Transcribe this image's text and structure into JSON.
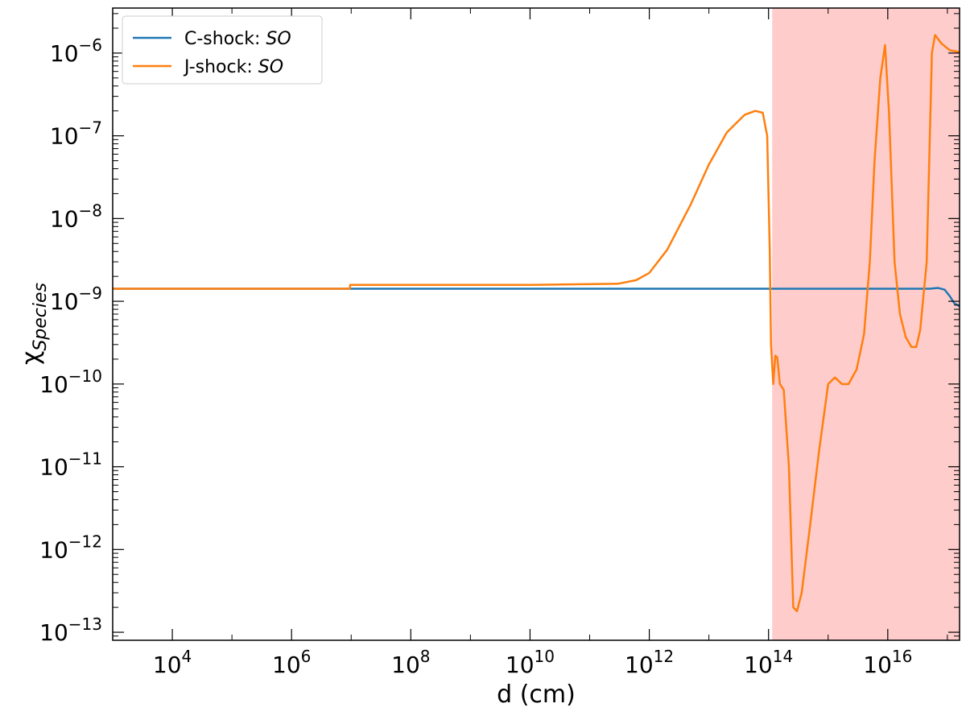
{
  "chart_data": {
    "type": "line",
    "xlabel": "d (cm)",
    "ylabel": "χ",
    "ylabel_sub": "Species",
    "xscale": "log",
    "yscale": "log",
    "xlim": [
      1000,
      1.6e+17
    ],
    "ylim": [
      8e-14,
      3.5e-06
    ],
    "xticks": [
      {
        "value": 10000,
        "base": "10",
        "exp": "4"
      },
      {
        "value": 1000000,
        "base": "10",
        "exp": "6"
      },
      {
        "value": 100000000,
        "base": "10",
        "exp": "8"
      },
      {
        "value": 10000000000,
        "base": "10",
        "exp": "10"
      },
      {
        "value": 1000000000000,
        "base": "10",
        "exp": "12"
      },
      {
        "value": 100000000000000,
        "base": "10",
        "exp": "14"
      },
      {
        "value": 10000000000000000,
        "base": "10",
        "exp": "16"
      }
    ],
    "yticks": [
      {
        "value": 1e-13,
        "base": "10",
        "exp": "−13"
      },
      {
        "value": 1e-12,
        "base": "10",
        "exp": "−12"
      },
      {
        "value": 1e-11,
        "base": "10",
        "exp": "−11"
      },
      {
        "value": 1e-10,
        "base": "10",
        "exp": "−10"
      },
      {
        "value": 1e-09,
        "base": "10",
        "exp": "−9"
      },
      {
        "value": 1e-08,
        "base": "10",
        "exp": "−8"
      },
      {
        "value": 1e-07,
        "base": "10",
        "exp": "−7"
      },
      {
        "value": 1e-06,
        "base": "10",
        "exp": "−6"
      }
    ],
    "shaded_region": {
      "x_start": 115000000000000.0,
      "x_end": 1.6e+17,
      "color": "#ffcccc"
    },
    "legend_position": "top-left",
    "series": [
      {
        "name": "C-shock: SO",
        "name_prefix": "C-shock: ",
        "name_species": "SO",
        "color": "#1f77b4",
        "points": [
          [
            1000,
            1.42e-09
          ],
          [
            1000000000.0,
            1.42e-09
          ],
          [
            1000000000000.0,
            1.42e-09
          ],
          [
            100000000000000.0,
            1.42e-09
          ],
          [
            1e+16,
            1.42e-09
          ],
          [
            3e+16,
            1.42e-09
          ],
          [
            5e+16,
            1.42e-09
          ],
          [
            7e+16,
            1.45e-09
          ],
          [
            9e+16,
            1.38e-09
          ],
          [
            1.1e+17,
            1.15e-09
          ],
          [
            1.3e+17,
            9.5e-10
          ],
          [
            1.6e+17,
            8.7e-10
          ]
        ]
      },
      {
        "name": "J-shock: SO",
        "name_prefix": "J-shock: ",
        "name_species": "SO",
        "color": "#ff7f0e",
        "points": [
          [
            1000,
            1.42e-09
          ],
          [
            9500000.0,
            1.42e-09
          ],
          [
            9600000.0,
            1.58e-09
          ],
          [
            10000000000.0,
            1.58e-09
          ],
          [
            300000000000.0,
            1.63e-09
          ],
          [
            600000000000.0,
            1.8e-09
          ],
          [
            1000000000000.0,
            2.2e-09
          ],
          [
            2000000000000.0,
            4.2e-09
          ],
          [
            5000000000000.0,
            1.5e-08
          ],
          [
            10000000000000.0,
            4.5e-08
          ],
          [
            20000000000000.0,
            1.1e-07
          ],
          [
            40000000000000.0,
            1.8e-07
          ],
          [
            60000000000000.0,
            2e-07
          ],
          [
            80000000000000.0,
            1.9e-07
          ],
          [
            95000000000000.0,
            1e-07
          ],
          [
            105000000000000.0,
            4e-09
          ],
          [
            110000000000000.0,
            3e-10
          ],
          [
            120000000000000.0,
            1e-10
          ],
          [
            130000000000000.0,
            2.2e-10
          ],
          [
            140000000000000.0,
            2.1e-10
          ],
          [
            155000000000000.0,
            1e-10
          ],
          [
            180000000000000.0,
            8.5e-11
          ],
          [
            220000000000000.0,
            1e-11
          ],
          [
            260000000000000.0,
            2e-13
          ],
          [
            300000000000000.0,
            1.8e-13
          ],
          [
            360000000000000.0,
            3e-13
          ],
          [
            500000000000000.0,
            2e-12
          ],
          [
            700000000000000.0,
            1.5e-11
          ],
          [
            1000000000000000.0,
            1e-10
          ],
          [
            1300000000000000.0,
            1.2e-10
          ],
          [
            1700000000000000.0,
            1e-10
          ],
          [
            2200000000000000.0,
            1e-10
          ],
          [
            3000000000000000.0,
            1.5e-10
          ],
          [
            4000000000000000.0,
            4e-10
          ],
          [
            5000000000000000.0,
            3e-09
          ],
          [
            6000000000000000.0,
            5e-08
          ],
          [
            7500000000000000.0,
            5e-07
          ],
          [
            9000000000000000.0,
            1.25e-06
          ],
          [
            1.05e+16,
            1.9e-07
          ],
          [
            1.3e+16,
            3e-09
          ],
          [
            1.6e+16,
            7e-10
          ],
          [
            2e+16,
            3.7e-10
          ],
          [
            2.5e+16,
            2.8e-10
          ],
          [
            3e+16,
            2.8e-10
          ],
          [
            3.5e+16,
            4.5e-10
          ],
          [
            4.5e+16,
            3e-09
          ],
          [
            5.5e+16,
            1e-06
          ],
          [
            6.2e+16,
            1.65e-06
          ],
          [
            8e+16,
            1.3e-06
          ],
          [
            1.1e+17,
            1.08e-06
          ],
          [
            1.6e+17,
            1.03e-06
          ]
        ]
      }
    ]
  }
}
